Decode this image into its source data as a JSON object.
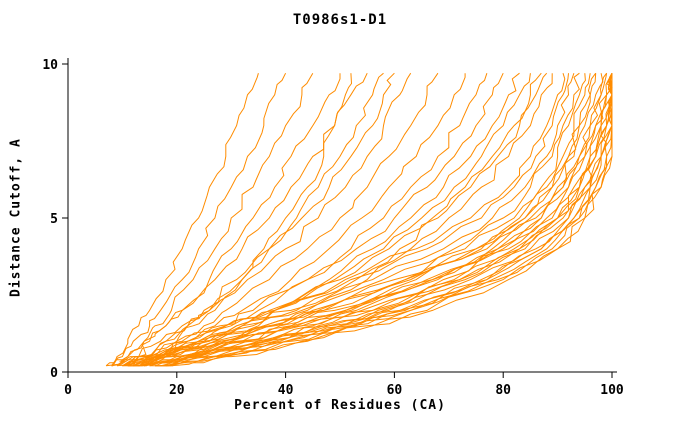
{
  "chart_data": {
    "type": "line",
    "title": "T0986s1-D1",
    "xlabel": "Percent of Residues (CA)",
    "ylabel": "Distance Cutoff, A",
    "xlim": [
      0,
      100
    ],
    "ylim": [
      0,
      10
    ],
    "x_ticks": [
      0,
      20,
      40,
      60,
      80,
      100
    ],
    "y_ticks": [
      0,
      5,
      10
    ],
    "grid": false,
    "legend": "none",
    "line_color": "#ff8c00",
    "axis_color": "#000000",
    "y_levels": [
      0.2,
      0.5,
      1,
      1.5,
      2,
      3,
      4,
      5,
      6,
      7,
      8,
      9,
      9.7
    ],
    "series": [
      {
        "x": [
          7,
          9,
          11,
          13,
          15,
          18,
          21,
          24,
          26,
          29,
          31,
          33,
          35
        ]
      },
      {
        "x": [
          8,
          10,
          12,
          15,
          17,
          21,
          24,
          27,
          30,
          33,
          36,
          38,
          40
        ]
      },
      {
        "x": [
          9,
          11,
          14,
          16,
          19,
          23,
          27,
          30,
          34,
          37,
          40,
          43,
          45
        ]
      },
      {
        "x": [
          10,
          13,
          15,
          18,
          21,
          26,
          30,
          34,
          38,
          41,
          45,
          48,
          50
        ]
      },
      {
        "x": [
          8,
          11,
          14,
          18,
          21,
          27,
          32,
          37,
          41,
          45,
          49,
          52,
          55
        ]
      },
      {
        "x": [
          12,
          15,
          18,
          22,
          26,
          32,
          37,
          42,
          46,
          50,
          53,
          56,
          58
        ]
      },
      {
        "x": [
          10,
          13,
          17,
          21,
          25,
          31,
          37,
          43,
          48,
          52,
          56,
          58,
          60
        ]
      },
      {
        "x": [
          14,
          17,
          20,
          23,
          27,
          32,
          36,
          40,
          44,
          47,
          49,
          51,
          52
        ]
      },
      {
        "x": [
          10,
          14,
          18,
          22,
          26,
          33,
          40,
          46,
          51,
          55,
          58,
          61,
          63
        ]
      },
      {
        "x": [
          11,
          15,
          20,
          25,
          29,
          37,
          44,
          50,
          55,
          59,
          63,
          66,
          68
        ]
      },
      {
        "x": [
          12,
          16,
          22,
          27,
          32,
          41,
          48,
          54,
          59,
          64,
          68,
          71,
          73
        ]
      },
      {
        "x": [
          13,
          18,
          24,
          29,
          35,
          44,
          52,
          58,
          63,
          68,
          72,
          75,
          77
        ]
      },
      {
        "x": [
          10,
          16,
          22,
          28,
          34,
          44,
          53,
          60,
          66,
          71,
          75,
          78,
          80
        ]
      },
      {
        "x": [
          14,
          19,
          26,
          32,
          38,
          48,
          56,
          63,
          69,
          74,
          78,
          81,
          83
        ]
      },
      {
        "x": [
          12,
          18,
          25,
          31,
          38,
          49,
          58,
          65,
          71,
          76,
          80,
          83,
          85
        ]
      },
      {
        "x": [
          15,
          21,
          28,
          35,
          42,
          53,
          61,
          68,
          74,
          79,
          83,
          86,
          88
        ]
      },
      {
        "x": [
          11,
          17,
          24,
          31,
          38,
          50,
          59,
          67,
          73,
          78,
          82,
          85,
          87
        ]
      },
      {
        "x": [
          16,
          22,
          30,
          37,
          44,
          55,
          63,
          70,
          76,
          81,
          85,
          87,
          89
        ]
      },
      {
        "x": [
          8,
          14,
          22,
          30,
          38,
          52,
          66,
          76,
          82,
          86,
          89,
          91,
          92
        ]
      },
      {
        "x": [
          9,
          15,
          24,
          32,
          41,
          56,
          69,
          78,
          84,
          88,
          90,
          92,
          93
        ]
      },
      {
        "x": [
          10,
          16,
          25,
          34,
          43,
          58,
          71,
          80,
          85,
          89,
          91,
          93,
          94
        ]
      },
      {
        "x": [
          11,
          17,
          27,
          36,
          45,
          60,
          73,
          82,
          87,
          90,
          92,
          94,
          95
        ]
      },
      {
        "x": [
          12,
          18,
          28,
          38,
          47,
          62,
          75,
          83,
          88,
          91,
          93,
          95,
          96
        ]
      },
      {
        "x": [
          9,
          16,
          26,
          36,
          46,
          62,
          75,
          84,
          89,
          92,
          94,
          96,
          97
        ]
      },
      {
        "x": [
          10,
          18,
          29,
          39,
          49,
          64,
          77,
          85,
          90,
          93,
          95,
          97,
          98
        ]
      },
      {
        "x": [
          13,
          20,
          31,
          41,
          51,
          66,
          78,
          86,
          91,
          94,
          96,
          98,
          99
        ]
      },
      {
        "x": [
          11,
          19,
          30,
          41,
          51,
          67,
          79,
          87,
          92,
          95,
          97,
          99,
          100
        ]
      },
      {
        "x": [
          14,
          21,
          33,
          43,
          53,
          68,
          80,
          88,
          92,
          95,
          97,
          99,
          100
        ]
      },
      {
        "x": [
          12,
          20,
          32,
          43,
          54,
          69,
          81,
          89,
          93,
          96,
          98,
          99,
          100
        ]
      },
      {
        "x": [
          15,
          23,
          35,
          46,
          56,
          71,
          82,
          90,
          94,
          96,
          98,
          100,
          100
        ]
      },
      {
        "x": [
          13,
          22,
          34,
          45,
          56,
          72,
          83,
          90,
          94,
          97,
          99,
          100,
          100
        ]
      },
      {
        "x": [
          16,
          24,
          37,
          48,
          58,
          73,
          84,
          91,
          95,
          97,
          99,
          100,
          100
        ]
      },
      {
        "x": [
          14,
          23,
          36,
          48,
          59,
          74,
          85,
          92,
          95,
          98,
          99,
          100,
          100
        ]
      },
      {
        "x": [
          17,
          26,
          39,
          50,
          61,
          76,
          86,
          92,
          96,
          98,
          100,
          100,
          100
        ]
      },
      {
        "x": [
          15,
          25,
          38,
          50,
          61,
          77,
          87,
          93,
          96,
          98,
          100,
          100,
          100
        ]
      },
      {
        "x": [
          18,
          28,
          41,
          53,
          63,
          78,
          88,
          94,
          97,
          99,
          100,
          100,
          100
        ]
      },
      {
        "x": [
          16,
          27,
          40,
          52,
          63,
          79,
          89,
          94,
          97,
          99,
          100,
          100,
          100
        ]
      },
      {
        "x": [
          18,
          29,
          43,
          55,
          66,
          80,
          90,
          95,
          98,
          100,
          100,
          100,
          100
        ]
      },
      {
        "x": [
          7,
          13,
          21,
          29,
          37,
          51,
          64,
          74,
          81,
          85,
          88,
          90,
          91
        ]
      },
      {
        "x": [
          10,
          17,
          27,
          37,
          47,
          63,
          76,
          84,
          89,
          92,
          94,
          96,
          97
        ]
      },
      {
        "x": [
          13,
          21,
          32,
          42,
          52,
          67,
          79,
          87,
          91,
          94,
          96,
          98,
          99
        ]
      },
      {
        "x": [
          15,
          24,
          36,
          47,
          57,
          72,
          83,
          90,
          94,
          97,
          98,
          100,
          100
        ]
      },
      {
        "x": [
          17,
          27,
          40,
          52,
          62,
          77,
          87,
          93,
          96,
          98,
          100,
          100,
          100
        ]
      },
      {
        "x": [
          19,
          30,
          44,
          56,
          67,
          81,
          90,
          95,
          98,
          100,
          100,
          100,
          100
        ]
      }
    ]
  }
}
